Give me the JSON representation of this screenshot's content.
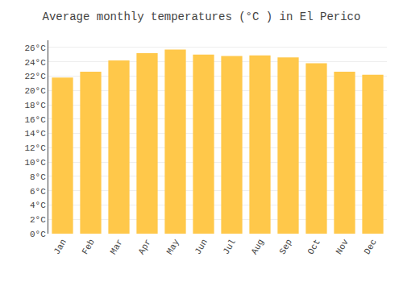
{
  "chart_data": {
    "type": "bar",
    "title": "Average monthly temperatures (°C ) in El Perico",
    "categories": [
      "Jan",
      "Feb",
      "Mar",
      "Apr",
      "May",
      "Jun",
      "Jul",
      "Aug",
      "Sep",
      "Oct",
      "Nov",
      "Dec"
    ],
    "values": [
      21.8,
      22.6,
      24.2,
      25.2,
      25.7,
      25.0,
      24.8,
      24.9,
      24.6,
      23.8,
      22.6,
      22.2
    ],
    "color": "#FFC84A",
    "ylim": [
      0,
      27
    ],
    "yticks": [
      {
        "value": 0,
        "label": "0°C"
      },
      {
        "value": 2,
        "label": "2°C"
      },
      {
        "value": 4,
        "label": "4°C"
      },
      {
        "value": 6,
        "label": "6°C"
      },
      {
        "value": 8,
        "label": "8°C"
      },
      {
        "value": 10,
        "label": "10°C"
      },
      {
        "value": 12,
        "label": "12°C"
      },
      {
        "value": 14,
        "label": "14°C"
      },
      {
        "value": 16,
        "label": "16°C"
      },
      {
        "value": 18,
        "label": "18°C"
      },
      {
        "value": 20,
        "label": "20°C"
      },
      {
        "value": 22,
        "label": "22°C"
      },
      {
        "value": 24,
        "label": "24°C"
      },
      {
        "value": 26,
        "label": "26°C"
      }
    ],
    "grid": true
  }
}
